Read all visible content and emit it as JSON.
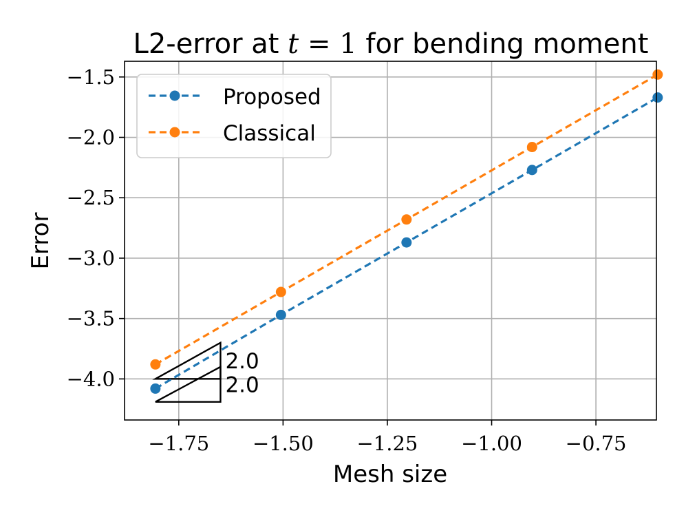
{
  "chart_data": {
    "type": "line",
    "title": {
      "prefix": "L2-error at ",
      "math_var": "t",
      "math_eq": " = 1",
      "suffix": " for bending moment"
    },
    "xlabel": "Mesh size",
    "ylabel": "Error",
    "xlim": [
      -1.88,
      -0.605
    ],
    "ylim": [
      -4.34,
      -1.37
    ],
    "xticks": [
      -1.75,
      -1.5,
      -1.25,
      -1.0,
      -0.75
    ],
    "xtick_labels": [
      "−1.75",
      "−1.50",
      "−1.25",
      "−1.00",
      "−0.75"
    ],
    "yticks": [
      -1.5,
      -2.0,
      -2.5,
      -3.0,
      -3.5,
      -4.0
    ],
    "ytick_labels": [
      "−1.5",
      "−2.0",
      "−2.5",
      "−3.0",
      "−3.5",
      "−4.0"
    ],
    "grid": true,
    "legend_position": "upper-left",
    "series": [
      {
        "name": "Proposed",
        "color": "#1f77b4",
        "x": [
          -1.806,
          -1.505,
          -1.204,
          -0.903,
          -0.602
        ],
        "y": [
          -4.08,
          -3.47,
          -2.87,
          -2.27,
          -1.67
        ]
      },
      {
        "name": "Classical",
        "color": "#ff7f0e",
        "x": [
          -1.806,
          -1.505,
          -1.204,
          -0.903,
          -0.602
        ],
        "y": [
          -3.88,
          -3.28,
          -2.68,
          -2.08,
          -1.48
        ]
      }
    ],
    "slope_triangles": [
      {
        "label": "2.0",
        "x0": -1.806,
        "x1": -1.65,
        "y0": -4.0,
        "y1": -3.7
      },
      {
        "label": "2.0",
        "x0": -1.806,
        "x1": -1.65,
        "y0": -4.19,
        "y1": -3.9
      }
    ]
  }
}
